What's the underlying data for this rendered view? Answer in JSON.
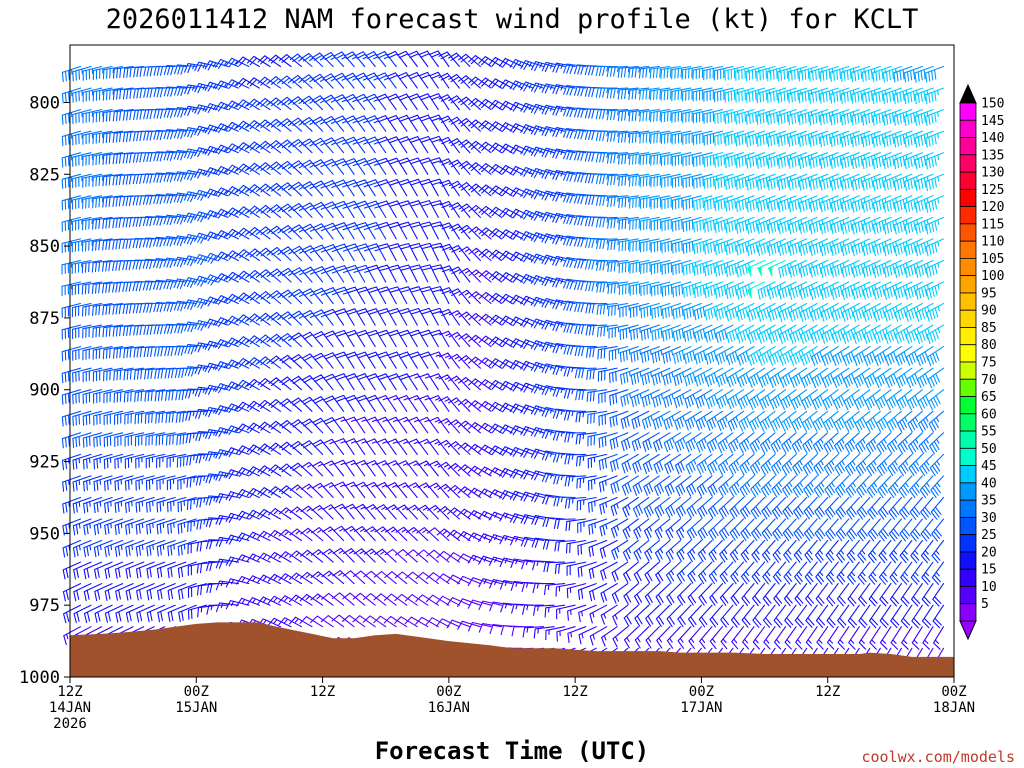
{
  "chart_data": {
    "type": "wind-profile",
    "title": "2026011412 NAM forecast wind profile (kt) for KCLT",
    "xlabel": "Forecast Time (UTC)",
    "credit": "coolwx.com/models",
    "y_axis": {
      "range_hpa": [
        780,
        1000
      ],
      "inverted": true,
      "ticks": [
        "800",
        "825",
        "850",
        "875",
        "900",
        "925",
        "950",
        "975",
        "1000"
      ],
      "tick_values": [
        800,
        825,
        850,
        875,
        900,
        925,
        950,
        975,
        1000
      ]
    },
    "x_axis": {
      "range_hours": [
        0,
        84
      ],
      "tick_hours": [
        0,
        12,
        24,
        36,
        48,
        60,
        72,
        84
      ],
      "ticks": [
        {
          "hour": "12Z",
          "date": "14JAN",
          "year": "2026"
        },
        {
          "hour": "00Z",
          "date": "15JAN",
          "year": ""
        },
        {
          "hour": "12Z",
          "date": "",
          "year": ""
        },
        {
          "hour": "00Z",
          "date": "16JAN",
          "year": ""
        },
        {
          "hour": "12Z",
          "date": "",
          "year": ""
        },
        {
          "hour": "00Z",
          "date": "17JAN",
          "year": ""
        },
        {
          "hour": "12Z",
          "date": "",
          "year": ""
        },
        {
          "hour": "00Z",
          "date": "18JAN",
          "year": ""
        }
      ]
    },
    "terrain": {
      "color": "#a0522d",
      "surface_pressure_by_hour": [
        {
          "t": 0,
          "p": 985.5
        },
        {
          "t": 3,
          "p": 985.0
        },
        {
          "t": 5,
          "p": 984.5
        },
        {
          "t": 8,
          "p": 983.5
        },
        {
          "t": 10,
          "p": 982.5
        },
        {
          "t": 12,
          "p": 981.5
        },
        {
          "t": 14,
          "p": 981.0
        },
        {
          "t": 18,
          "p": 981.0
        },
        {
          "t": 19,
          "p": 982.0
        },
        {
          "t": 21,
          "p": 983.5
        },
        {
          "t": 23,
          "p": 985.0
        },
        {
          "t": 25,
          "p": 986.5
        },
        {
          "t": 27,
          "p": 986.5
        },
        {
          "t": 29,
          "p": 985.5
        },
        {
          "t": 31,
          "p": 985.0
        },
        {
          "t": 33,
          "p": 986.0
        },
        {
          "t": 36,
          "p": 987.5
        },
        {
          "t": 40,
          "p": 989.0
        },
        {
          "t": 42,
          "p": 990.0
        },
        {
          "t": 46,
          "p": 990.0
        },
        {
          "t": 48,
          "p": 990.5
        },
        {
          "t": 50,
          "p": 991.0
        },
        {
          "t": 56,
          "p": 991.0
        },
        {
          "t": 58,
          "p": 991.5
        },
        {
          "t": 63,
          "p": 991.5
        },
        {
          "t": 66,
          "p": 992.0
        },
        {
          "t": 72,
          "p": 992.0
        },
        {
          "t": 75,
          "p": 992.0
        },
        {
          "t": 76,
          "p": 991.5
        },
        {
          "t": 78,
          "p": 992.0
        },
        {
          "t": 80,
          "p": 993.0
        },
        {
          "t": 84,
          "p": 993.0
        }
      ]
    },
    "barbs": {
      "time_step_hours": 1,
      "pressure_levels": [
        787.5,
        795,
        802.5,
        810,
        817.5,
        825,
        832.5,
        840,
        847.5,
        855,
        862.5,
        870,
        877.5,
        885,
        892.5,
        900,
        907.5,
        915,
        922.5,
        930,
        937.5,
        945,
        952.5,
        960,
        967.5,
        975,
        982.5,
        990,
        997.5
      ],
      "flag_kt": 50,
      "full_barb_kt": 10,
      "half_barb_kt": 5,
      "keyframes": [
        {
          "t": 0,
          "upper": {
            "dir": 250,
            "spd": 36
          },
          "mid": {
            "dir": 255,
            "spd": 33
          },
          "low": {
            "dir": 250,
            "spd": 26
          },
          "sfc": {
            "dir": 240,
            "spd": 15
          }
        },
        {
          "t": 12,
          "upper": {
            "dir": 275,
            "spd": 28
          },
          "mid": {
            "dir": 280,
            "spd": 30
          },
          "low": {
            "dir": 255,
            "spd": 27
          },
          "sfc": {
            "dir": 245,
            "spd": 15
          }
        },
        {
          "t": 18,
          "upper": {
            "dir": 300,
            "spd": 22
          },
          "mid": {
            "dir": 305,
            "spd": 26
          },
          "low": {
            "dir": 295,
            "spd": 20
          },
          "sfc": {
            "dir": 290,
            "spd": 13
          }
        },
        {
          "t": 27,
          "upper": {
            "dir": 320,
            "spd": 23
          },
          "mid": {
            "dir": 330,
            "spd": 24
          },
          "low": {
            "dir": 325,
            "spd": 15
          },
          "sfc": {
            "dir": 305,
            "spd": 11
          }
        },
        {
          "t": 36,
          "upper": {
            "dir": 325,
            "spd": 22
          },
          "mid": {
            "dir": 335,
            "spd": 20
          },
          "low": {
            "dir": 320,
            "spd": 14
          },
          "sfc": {
            "dir": 295,
            "spd": 9
          }
        },
        {
          "t": 40,
          "upper": {
            "dir": 305,
            "spd": 20
          },
          "mid": {
            "dir": 310,
            "spd": 16
          },
          "low": {
            "dir": 300,
            "spd": 15
          },
          "sfc": {
            "dir": 280,
            "spd": 10
          }
        },
        {
          "t": 46,
          "upper": {
            "dir": 285,
            "spd": 24
          },
          "mid": {
            "dir": 290,
            "spd": 24
          },
          "low": {
            "dir": 285,
            "spd": 22
          },
          "sfc": {
            "dir": 260,
            "spd": 12
          }
        },
        {
          "t": 54,
          "upper": {
            "dir": 265,
            "spd": 36
          },
          "mid": {
            "dir": 260,
            "spd": 38
          },
          "low": {
            "dir": 235,
            "spd": 28
          },
          "sfc": {
            "dir": 225,
            "spd": 14
          }
        },
        {
          "t": 66,
          "upper": {
            "dir": 255,
            "spd": 44
          },
          "mid": {
            "dir": 245,
            "spd": 48
          },
          "low": {
            "dir": 225,
            "spd": 33
          },
          "sfc": {
            "dir": 215,
            "spd": 14
          }
        },
        {
          "t": 84,
          "upper": {
            "dir": 250,
            "spd": 42
          },
          "mid": {
            "dir": 245,
            "spd": 46
          },
          "low": {
            "dir": 220,
            "spd": 32
          },
          "sfc": {
            "dir": 210,
            "spd": 12
          }
        }
      ]
    },
    "colorbar": {
      "min_kt": 2.5,
      "max_kt": 152.5,
      "labels": [
        "150",
        "145",
        "140",
        "135",
        "130",
        "125",
        "120",
        "115",
        "110",
        "105",
        "100",
        "95",
        "90",
        "85",
        "80",
        "75",
        "70",
        "65",
        "60",
        "55",
        "50",
        "45",
        "40",
        "35",
        "30",
        "25",
        "20",
        "15",
        "10",
        "5"
      ],
      "colors": [
        "#ff00ff",
        "#ff00cc",
        "#ff0099",
        "#ff0066",
        "#ff0033",
        "#ff0000",
        "#ff2a00",
        "#ff5500",
        "#ff7700",
        "#ff8c00",
        "#ffa500",
        "#ffc000",
        "#ffd700",
        "#ffee00",
        "#ffff00",
        "#ccff00",
        "#66ff00",
        "#00ff33",
        "#00ff66",
        "#00ffaa",
        "#00ffcc",
        "#00ccff",
        "#0099ff",
        "#0077ff",
        "#0055ff",
        "#0033ff",
        "#1010ff",
        "#3300ff",
        "#5500ff",
        "#8800ff"
      ],
      "over_color": "#000000",
      "under_color": "#9900ff"
    }
  }
}
